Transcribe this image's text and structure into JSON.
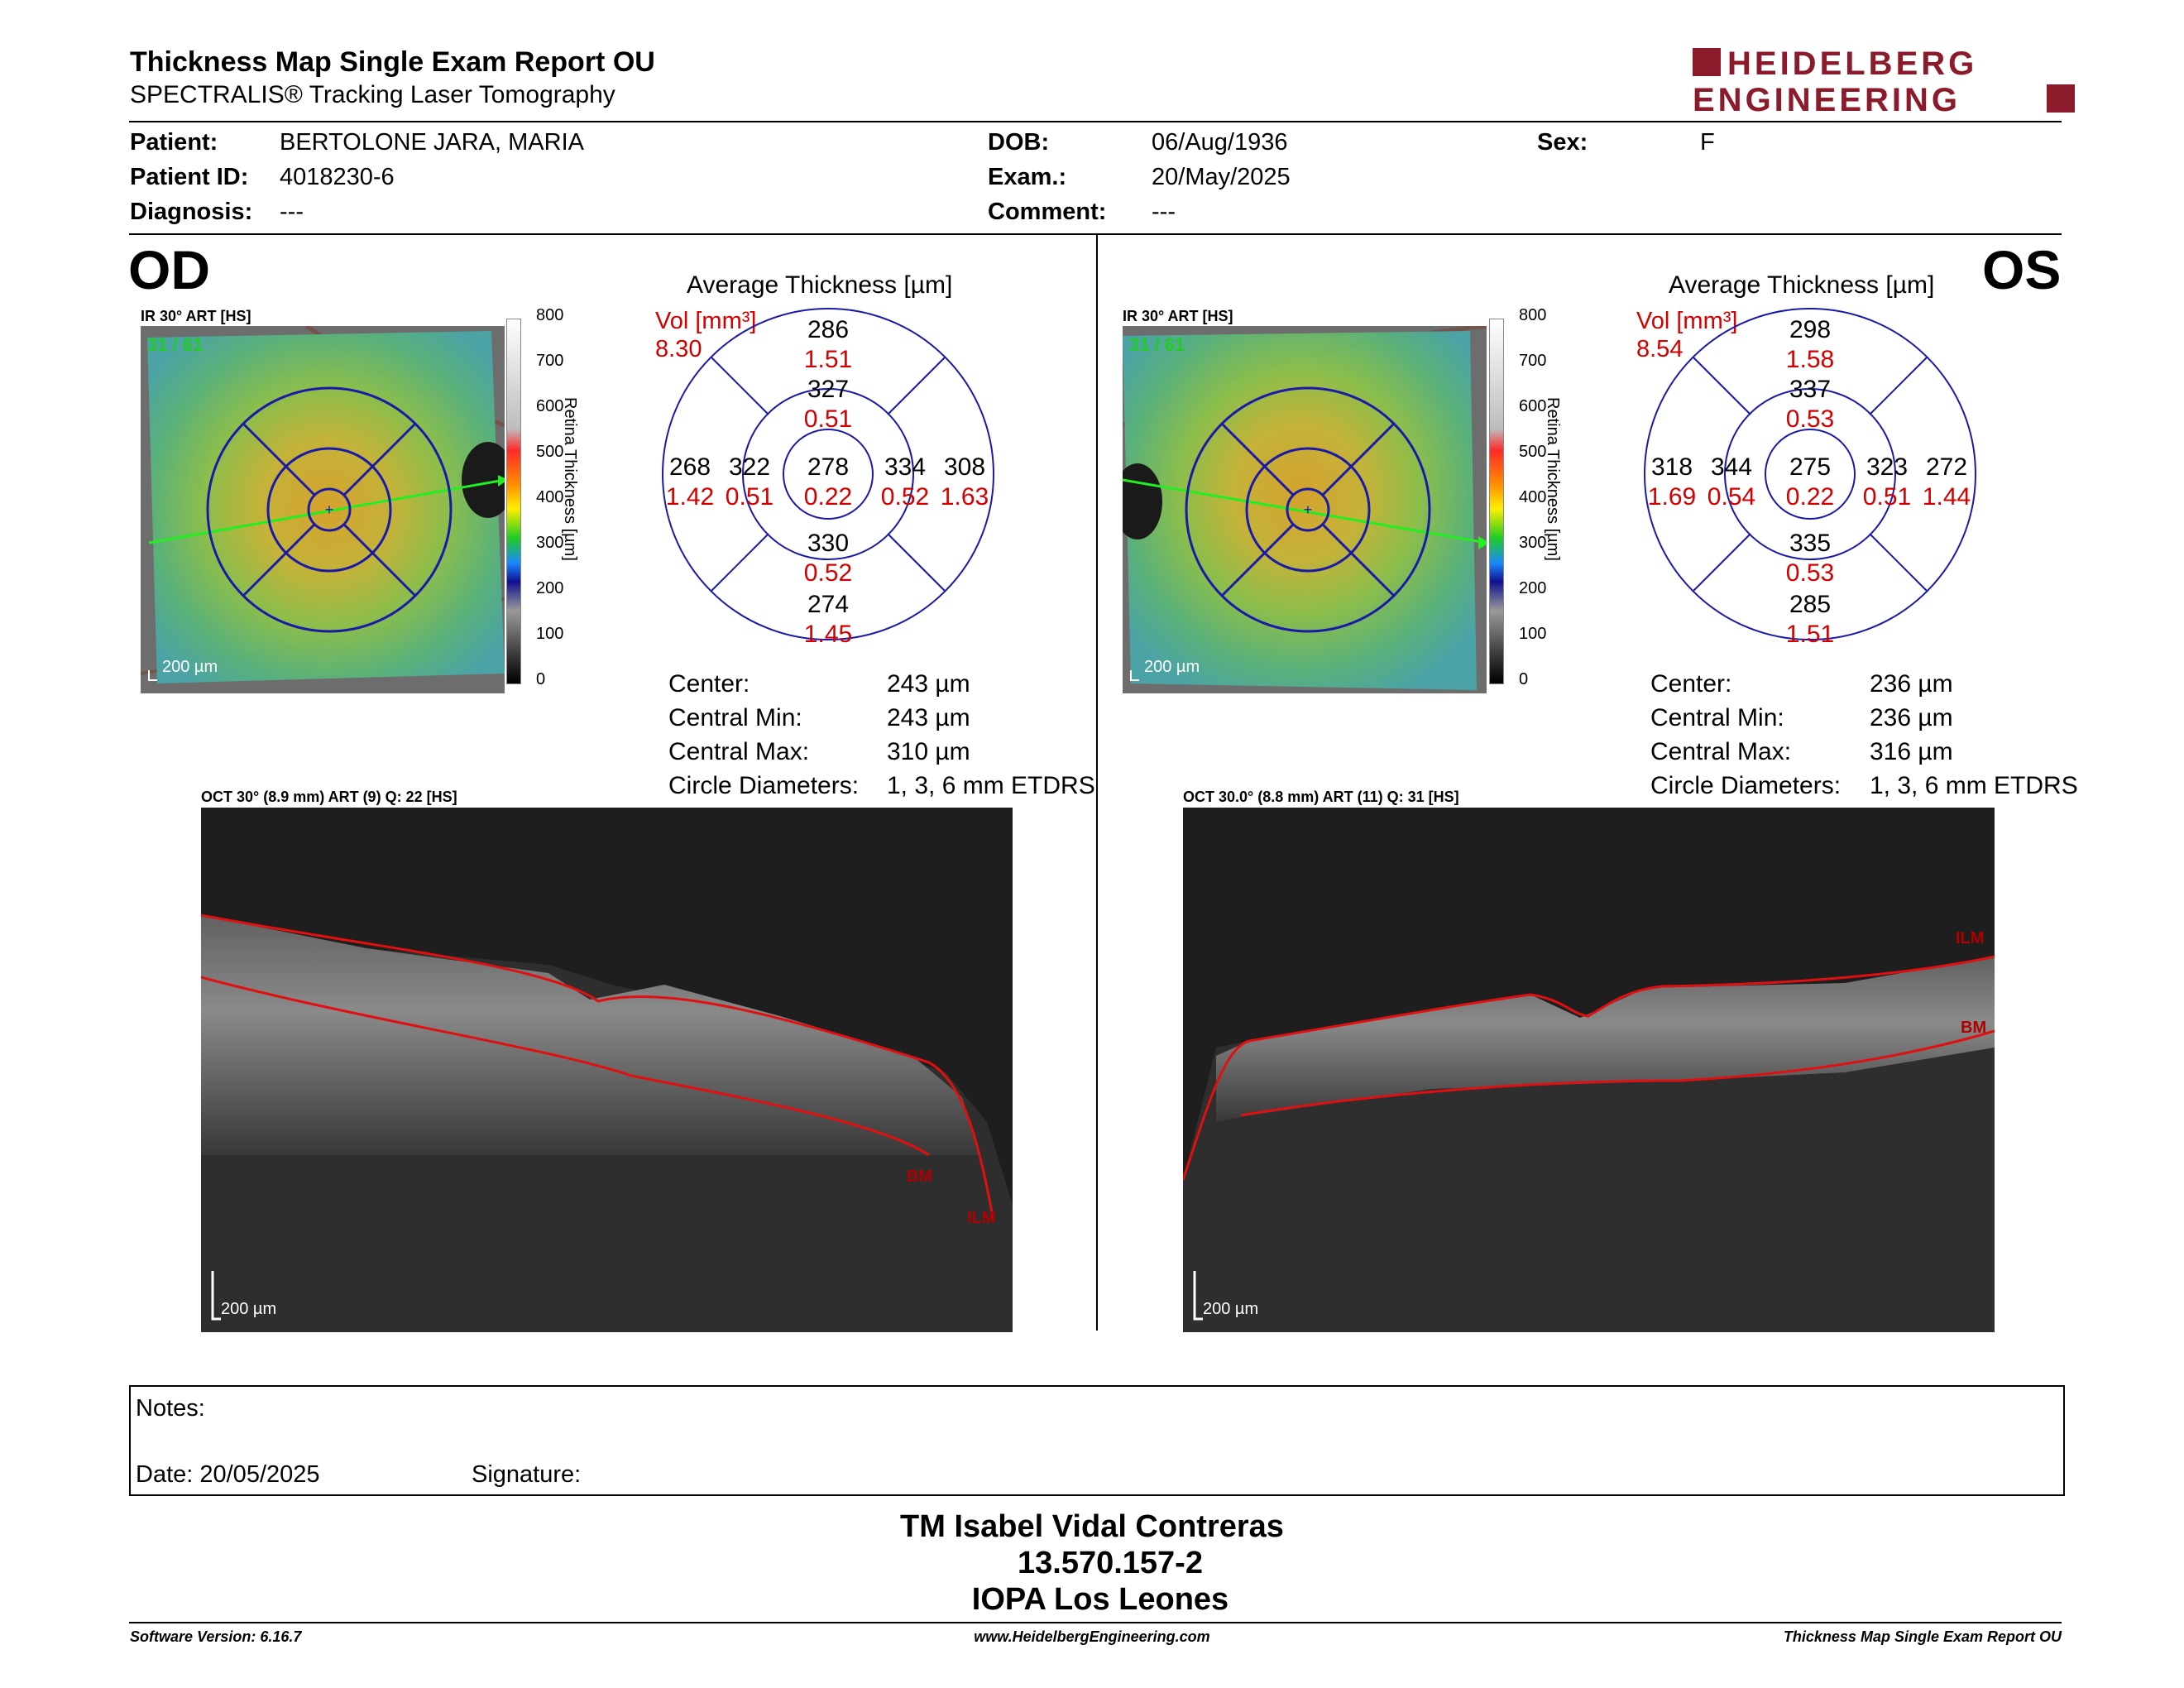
{
  "header": {
    "title": "Thickness Map Single Exam Report OU",
    "subtitle": "SPECTRALIS® Tracking Laser Tomography",
    "logo_line1": "HEIDELBERG",
    "logo_line2": "ENGINEERING",
    "logo_color": "#8b1a2b"
  },
  "patient": {
    "patient_label": "Patient:",
    "patient_value": "BERTOLONE JARA, MARIA",
    "id_label": "Patient ID:",
    "id_value": "4018230-6",
    "diag_label": "Diagnosis:",
    "diag_value": "---",
    "dob_label": "DOB:",
    "dob_value": "06/Aug/1936",
    "exam_label": "Exam.:",
    "exam_value": "20/May/2025",
    "comment_label": "Comment:",
    "comment_value": "---",
    "sex_label": "Sex:",
    "sex_value": "F"
  },
  "od": {
    "eye_label": "OD",
    "ir_caption": "IR 30° ART [HS]",
    "frames": "31 / 61",
    "scale": "200 µm",
    "avg_title": "Average Thickness [µm]",
    "vol_label": "Vol [mm³]",
    "vol_value": "8.30",
    "sectors": {
      "center_t": "278",
      "center_v": "0.22",
      "inner_sup_t": "327",
      "inner_sup_v": "0.51",
      "inner_inf_t": "330",
      "inner_inf_v": "0.52",
      "inner_left_t": "322",
      "inner_left_v": "0.51",
      "inner_right_t": "334",
      "inner_right_v": "0.52",
      "outer_sup_t": "286",
      "outer_sup_v": "1.51",
      "outer_inf_t": "274",
      "outer_inf_v": "1.45",
      "outer_left_t": "268",
      "outer_left_v": "1.42",
      "outer_right_t": "308",
      "outer_right_v": "1.63"
    },
    "stats": {
      "center_label": "Center:",
      "center_value": "243 µm",
      "cmin_label": "Central Min:",
      "cmin_value": "243 µm",
      "cmax_label": "Central Max:",
      "cmax_value": "310 µm",
      "diam_label": "Circle Diameters:",
      "diam_value": "1, 3, 6 mm ETDRS"
    },
    "oct_caption": "OCT 30° (8.9 mm) ART (9) Q: 22 [HS]",
    "oct_scale": "200 µm",
    "ilm": "ILM",
    "bm": "BM"
  },
  "os": {
    "eye_label": "OS",
    "ir_caption": "IR 30° ART [HS]",
    "frames": "31 / 61",
    "scale": "200 µm",
    "avg_title": "Average Thickness [µm]",
    "vol_label": "Vol [mm³]",
    "vol_value": "8.54",
    "sectors": {
      "center_t": "275",
      "center_v": "0.22",
      "inner_sup_t": "337",
      "inner_sup_v": "0.53",
      "inner_inf_t": "335",
      "inner_inf_v": "0.53",
      "inner_left_t": "344",
      "inner_left_v": "0.54",
      "inner_right_t": "323",
      "inner_right_v": "0.51",
      "outer_sup_t": "298",
      "outer_sup_v": "1.58",
      "outer_inf_t": "285",
      "outer_inf_v": "1.51",
      "outer_left_t": "318",
      "outer_left_v": "1.69",
      "outer_right_t": "272",
      "outer_right_v": "1.44"
    },
    "stats": {
      "center_label": "Center:",
      "center_value": "236 µm",
      "cmin_label": "Central Min:",
      "cmin_value": "236 µm",
      "cmax_label": "Central Max:",
      "cmax_value": "316 µm",
      "diam_label": "Circle Diameters:",
      "diam_value": "1, 3, 6 mm ETDRS"
    },
    "oct_caption": "OCT 30.0° (8.8 mm) ART (11) Q: 31 [HS]",
    "oct_scale": "200 µm",
    "ilm": "ILM",
    "bm": "BM"
  },
  "colorbar": {
    "ticks": [
      "800",
      "700",
      "600",
      "500",
      "400",
      "300",
      "200",
      "100",
      "0"
    ],
    "label": "Retina  Thickness [µm]"
  },
  "notes": {
    "notes_label": "Notes:",
    "date_label": "Date: 20/05/2025",
    "signature_label": "Signature:"
  },
  "signer": {
    "name": "TM Isabel Vidal Contreras",
    "id": "13.570.157-2",
    "org": "IOPA Los Leones"
  },
  "footer": {
    "left": "Software Version: 6.16.7",
    "center": "www.HeidelbergEngineering.com",
    "right": "Thickness Map Single Exam Report OU"
  },
  "colors": {
    "ring_blue": "#1a1aa8",
    "volume_red": "#d40000",
    "segmentation_red": "#e01010",
    "frame_green": "#22cc22"
  }
}
